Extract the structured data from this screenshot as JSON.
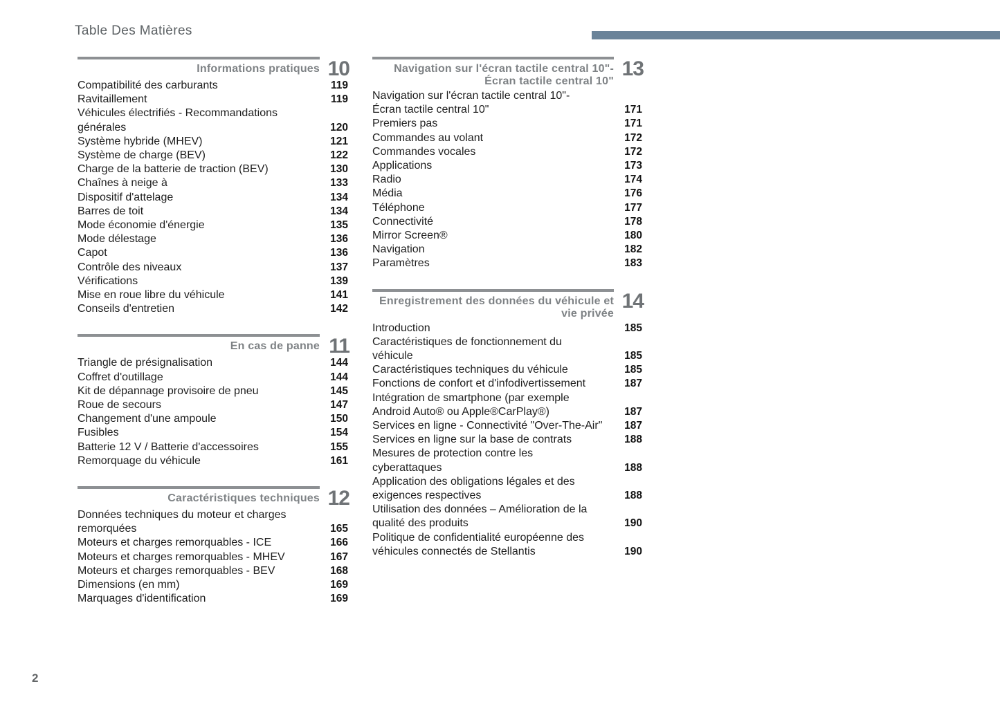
{
  "page": {
    "title": "Table Des Matières",
    "footer_page_number": "2",
    "accent_bar_color": "#6a8399",
    "rule_color": "#8d9093"
  },
  "columns": {
    "left": [
      {
        "number": "10",
        "title": "Informations pratiques",
        "entries": [
          {
            "label": "Compatibilité des carburants",
            "page": "119"
          },
          {
            "label": "Ravitaillement",
            "page": "119"
          },
          {
            "label": "Véhicules électrifiés - Recommandations\ngénérales",
            "page": "120"
          },
          {
            "label": "Système hybride (MHEV)",
            "page": "121"
          },
          {
            "label": "Système de charge (BEV)",
            "page": "122"
          },
          {
            "label": "Charge de la batterie de traction (BEV)",
            "page": "130"
          },
          {
            "label": "Chaînes à neige à",
            "page": "133"
          },
          {
            "label": "Dispositif d'attelage",
            "page": "134"
          },
          {
            "label": "Barres de toit",
            "page": "134"
          },
          {
            "label": "Mode économie d'énergie",
            "page": "135"
          },
          {
            "label": "Mode délestage",
            "page": "136"
          },
          {
            "label": "Capot",
            "page": "136"
          },
          {
            "label": "Contrôle des niveaux",
            "page": "137"
          },
          {
            "label": "Vérifications",
            "page": "139"
          },
          {
            "label": "Mise en roue libre du véhicule",
            "page": "141"
          },
          {
            "label": "Conseils d'entretien",
            "page": "142"
          }
        ]
      },
      {
        "number": "11",
        "title": "En cas de panne",
        "entries": [
          {
            "label": "Triangle de présignalisation",
            "page": "144"
          },
          {
            "label": "Coffret d'outillage",
            "page": "144"
          },
          {
            "label": "Kit de dépannage provisoire de pneu",
            "page": "145"
          },
          {
            "label": "Roue de secours",
            "page": "147"
          },
          {
            "label": "Changement d'une ampoule",
            "page": "150"
          },
          {
            "label": "Fusibles",
            "page": "154"
          },
          {
            "label": "Batterie 12 V / Batterie d'accessoires",
            "page": "155"
          },
          {
            "label": "Remorquage du véhicule",
            "page": "161"
          }
        ]
      },
      {
        "number": "12",
        "title": "Caractéristiques techniques",
        "entries": [
          {
            "label": "Données techniques du moteur et charges\nremorquées",
            "page": "165"
          },
          {
            "label": "Moteurs et charges remorquables - ICE",
            "page": "166"
          },
          {
            "label": "Moteurs et charges remorquables - MHEV",
            "page": "167"
          },
          {
            "label": "Moteurs et charges remorquables - BEV",
            "page": "168"
          },
          {
            "label": "Dimensions (en mm)",
            "page": "169"
          },
          {
            "label": "Marquages d'identification",
            "page": "169"
          }
        ]
      }
    ],
    "right": [
      {
        "number": "13",
        "title": "Navigation sur l'écran tactile central 10\"-\nÉcran tactile central 10\"",
        "entries": [
          {
            "label": "Navigation sur l'écran tactile central 10\"-\nÉcran tactile central 10\"",
            "page": "171"
          },
          {
            "label": "Premiers pas",
            "page": "171"
          },
          {
            "label": "Commandes au volant",
            "page": "172"
          },
          {
            "label": "Commandes vocales",
            "page": "172"
          },
          {
            "label": "Applications",
            "page": "173"
          },
          {
            "label": "Radio",
            "page": "174"
          },
          {
            "label": "Média",
            "page": "176"
          },
          {
            "label": "Téléphone",
            "page": "177"
          },
          {
            "label": "Connectivité",
            "page": "178"
          },
          {
            "label": "Mirror Screen®",
            "page": "180"
          },
          {
            "label": "Navigation",
            "page": "182"
          },
          {
            "label": "Paramètres",
            "page": "183"
          }
        ]
      },
      {
        "number": "14",
        "title": "Enregistrement des données du véhicule et\nvie privée",
        "entries": [
          {
            "label": "Introduction",
            "page": "185"
          },
          {
            "label": "Caractéristiques de fonctionnement du\nvéhicule",
            "page": "185"
          },
          {
            "label": "Caractéristiques techniques du véhicule",
            "page": "185"
          },
          {
            "label": "Fonctions de confort et d'infodivertissement",
            "page": "187"
          },
          {
            "label": "Intégration de smartphone (par exemple\nAndroid Auto® ou Apple®CarPlay®)",
            "page": "187"
          },
          {
            "label": "Services en ligne - Connectivité \"Over-The-Air\"",
            "page": "187"
          },
          {
            "label": "Services en ligne sur la base de contrats",
            "page": "188"
          },
          {
            "label": "Mesures de protection contre les\ncyberattaques",
            "page": "188"
          },
          {
            "label": "Application des obligations légales et des\nexigences respectives",
            "page": "188"
          },
          {
            "label": "Utilisation des données – Amélioration de la\nqualité des produits",
            "page": "190"
          },
          {
            "label": "Politique de confidentialité européenne des\nvéhicules connectés de Stellantis",
            "page": "190"
          }
        ]
      }
    ]
  }
}
